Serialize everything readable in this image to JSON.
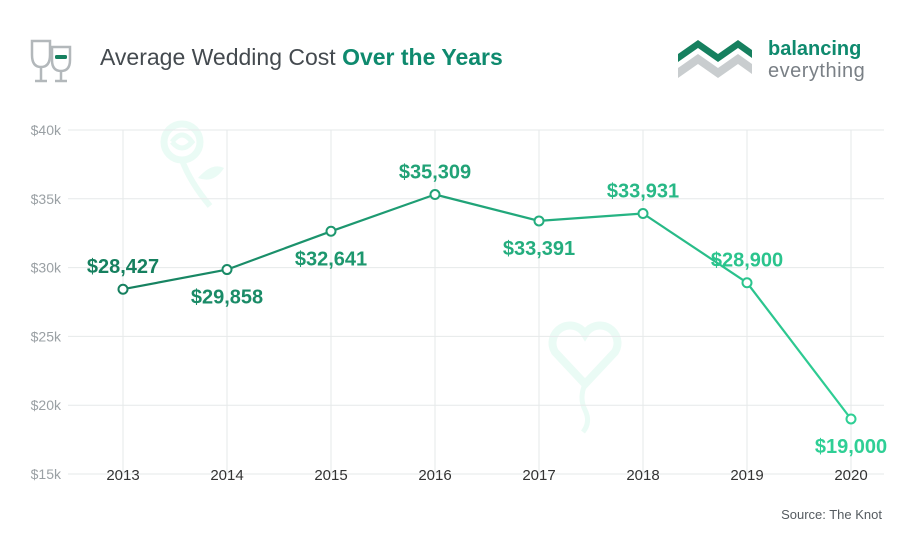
{
  "header": {
    "title_prefix": "Average Wedding Cost",
    "title_highlight": "Over the Years",
    "icon": "wine-glasses-icon"
  },
  "brand": {
    "line1": "balancing",
    "line2": "everything",
    "icon": "balancing-everything-logo"
  },
  "source": "Source: The Knot",
  "colors": {
    "dark_green": "#16805f",
    "light_green": "#2fcf95",
    "gradient_mid": "#22a97c",
    "grid": "#e6e9ea",
    "axis_text": "#9aa0a4",
    "year_text": "#333333",
    "title_accent": "#0f8a6e"
  },
  "chart_data": {
    "type": "line",
    "title": "Average Wedding Cost Over the Years",
    "x": [
      "2013",
      "2014",
      "2015",
      "2016",
      "2017",
      "2018",
      "2019",
      "2020"
    ],
    "series": [
      {
        "values": [
          28427,
          29858,
          32641,
          35309,
          33391,
          33931,
          28900,
          19000
        ],
        "labels": [
          "$28,427",
          "$29,858",
          "$32,641",
          "$35,309",
          "$33,391",
          "$33,931",
          "$28,900",
          "$19,000"
        ]
      }
    ],
    "ylim": [
      15000,
      40000
    ],
    "yticks": [
      {
        "value": 40000,
        "label": "$40k"
      },
      {
        "value": 35000,
        "label": "$35k"
      },
      {
        "value": 30000,
        "label": "$30k"
      },
      {
        "value": 25000,
        "label": "$25k"
      },
      {
        "value": 20000,
        "label": "$20k"
      },
      {
        "value": 15000,
        "label": "$15k"
      }
    ],
    "grid": true,
    "marker": "hollow-circle",
    "label_positions": [
      "above",
      "below",
      "below",
      "above",
      "below",
      "above",
      "above",
      "below"
    ]
  }
}
